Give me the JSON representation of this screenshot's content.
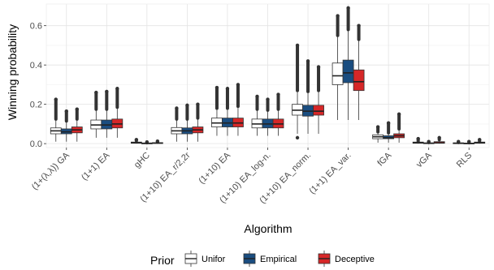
{
  "chart_data": {
    "type": "boxplot",
    "xlabel": "Algorithm",
    "ylabel": "Winning probability",
    "ylim": [
      -0.02,
      0.71
    ],
    "yticks": [
      0.0,
      0.2,
      0.4,
      0.6
    ],
    "ytick_labels": [
      "0.0",
      "0.2",
      "0.4",
      "0.6"
    ],
    "grid": true,
    "legend": {
      "title": "Prior",
      "placement": "bottom",
      "entries": [
        "Unifor",
        "Empirical",
        "Deceptive"
      ]
    },
    "categories": [
      "(1+(λ,λ)) GA",
      "(1+1) EA",
      "gHC",
      "(1+10) EA_r/2,2r",
      "(1+10) EA",
      "(1+10) EA_log-n.",
      "(1+10) EA_norm.",
      "(1+1) EA_var.",
      "fGA",
      "vGA",
      "RLS"
    ],
    "series": [
      {
        "name": "Unifor",
        "color": "#ffffff",
        "boxes": [
          {
            "wlo": 0.01,
            "q1": 0.05,
            "med": 0.065,
            "q3": 0.08,
            "whi": 0.125,
            "omax": 0.225
          },
          {
            "wlo": 0.03,
            "q1": 0.075,
            "med": 0.095,
            "q3": 0.12,
            "whi": 0.175,
            "omax": 0.26
          },
          {
            "wlo": 0.0,
            "q1": 0.002,
            "med": 0.004,
            "q3": 0.008,
            "whi": 0.015,
            "omax": 0.02
          },
          {
            "wlo": 0.01,
            "q1": 0.05,
            "med": 0.065,
            "q3": 0.082,
            "whi": 0.125,
            "omax": 0.18
          },
          {
            "wlo": 0.04,
            "q1": 0.085,
            "med": 0.105,
            "q3": 0.13,
            "whi": 0.18,
            "omax": 0.285
          },
          {
            "wlo": 0.04,
            "q1": 0.08,
            "med": 0.1,
            "q3": 0.125,
            "whi": 0.175,
            "omax": 0.24
          },
          {
            "wlo": 0.05,
            "q1": 0.145,
            "med": 0.17,
            "q3": 0.2,
            "whi": 0.27,
            "omax": 0.5,
            "omin": 0.03
          },
          {
            "wlo": 0.12,
            "q1": 0.3,
            "med": 0.345,
            "q3": 0.41,
            "whi": 0.55,
            "omax": 0.65
          },
          {
            "wlo": 0.005,
            "q1": 0.025,
            "med": 0.035,
            "q3": 0.045,
            "whi": 0.06,
            "omax": 0.085
          },
          {
            "wlo": 0.0,
            "q1": 0.002,
            "med": 0.004,
            "q3": 0.008,
            "whi": 0.012,
            "omax": 0.025
          },
          {
            "wlo": 0.0,
            "q1": 0.001,
            "med": 0.002,
            "q3": 0.004,
            "whi": 0.006,
            "omax": 0.01
          }
        ]
      },
      {
        "name": "Empirical",
        "color": "#1a4d80",
        "boxes": [
          {
            "wlo": 0.01,
            "q1": 0.05,
            "med": 0.06,
            "q3": 0.075,
            "whi": 0.115,
            "omax": 0.165
          },
          {
            "wlo": 0.03,
            "q1": 0.075,
            "med": 0.095,
            "q3": 0.12,
            "whi": 0.175,
            "omax": 0.265
          },
          {
            "wlo": 0.0,
            "q1": 0.001,
            "med": 0.002,
            "q3": 0.003,
            "whi": 0.005,
            "omax": 0.008
          },
          {
            "wlo": 0.01,
            "q1": 0.05,
            "med": 0.065,
            "q3": 0.08,
            "whi": 0.125,
            "omax": 0.195
          },
          {
            "wlo": 0.04,
            "q1": 0.085,
            "med": 0.105,
            "q3": 0.13,
            "whi": 0.18,
            "omax": 0.28
          },
          {
            "wlo": 0.04,
            "q1": 0.08,
            "med": 0.1,
            "q3": 0.125,
            "whi": 0.17,
            "omax": 0.225
          },
          {
            "wlo": 0.05,
            "q1": 0.14,
            "med": 0.165,
            "q3": 0.195,
            "whi": 0.265,
            "omax": 0.42
          },
          {
            "wlo": 0.12,
            "q1": 0.31,
            "med": 0.36,
            "q3": 0.425,
            "whi": 0.58,
            "omax": 0.69
          },
          {
            "wlo": 0.005,
            "q1": 0.025,
            "med": 0.03,
            "q3": 0.04,
            "whi": 0.055,
            "omax": 0.105
          },
          {
            "wlo": 0.0,
            "q1": 0.001,
            "med": 0.002,
            "q3": 0.004,
            "whi": 0.006,
            "omax": 0.01
          },
          {
            "wlo": 0.0,
            "q1": 0.0,
            "med": 0.001,
            "q3": 0.003,
            "whi": 0.005,
            "omax": 0.01
          }
        ]
      },
      {
        "name": "Deceptive",
        "color": "#d62728",
        "boxes": [
          {
            "wlo": 0.01,
            "q1": 0.055,
            "med": 0.07,
            "q3": 0.085,
            "whi": 0.125,
            "omax": 0.175
          },
          {
            "wlo": 0.03,
            "q1": 0.08,
            "med": 0.1,
            "q3": 0.125,
            "whi": 0.185,
            "omax": 0.28
          },
          {
            "wlo": 0.0,
            "q1": 0.002,
            "med": 0.003,
            "q3": 0.005,
            "whi": 0.008,
            "omax": 0.012
          },
          {
            "wlo": 0.01,
            "q1": 0.055,
            "med": 0.07,
            "q3": 0.085,
            "whi": 0.13,
            "omax": 0.2
          },
          {
            "wlo": 0.04,
            "q1": 0.085,
            "med": 0.105,
            "q3": 0.13,
            "whi": 0.19,
            "omax": 0.3
          },
          {
            "wlo": 0.04,
            "q1": 0.08,
            "med": 0.1,
            "q3": 0.125,
            "whi": 0.175,
            "omax": 0.25
          },
          {
            "wlo": 0.05,
            "q1": 0.145,
            "med": 0.165,
            "q3": 0.195,
            "whi": 0.27,
            "omax": 0.39
          },
          {
            "wlo": 0.12,
            "q1": 0.27,
            "med": 0.315,
            "q3": 0.375,
            "whi": 0.53,
            "omax": 0.6
          },
          {
            "wlo": 0.005,
            "q1": 0.03,
            "med": 0.04,
            "q3": 0.05,
            "whi": 0.075,
            "omax": 0.15
          },
          {
            "wlo": 0.0,
            "q1": 0.002,
            "med": 0.004,
            "q3": 0.01,
            "whi": 0.02,
            "omax": 0.03
          },
          {
            "wlo": 0.0,
            "q1": 0.002,
            "med": 0.004,
            "q3": 0.008,
            "whi": 0.012,
            "omax": 0.02
          }
        ]
      }
    ]
  }
}
